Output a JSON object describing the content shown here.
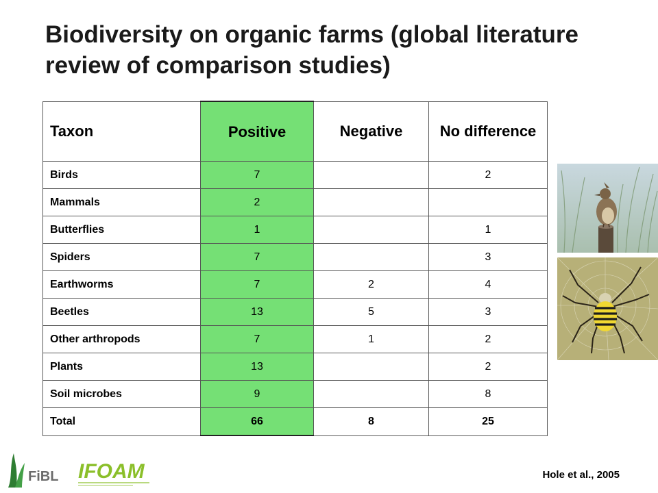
{
  "title": "Biodiversity on organic farms (global literature review of comparison studies)",
  "table": {
    "headers": [
      "Taxon",
      "Positive",
      "Negative",
      "No difference"
    ],
    "rows": [
      {
        "taxon": "Birds",
        "positive": "7",
        "negative": "",
        "no_difference": "2"
      },
      {
        "taxon": "Mammals",
        "positive": "2",
        "negative": "",
        "no_difference": ""
      },
      {
        "taxon": "Butterflies",
        "positive": "1",
        "negative": "",
        "no_difference": "1"
      },
      {
        "taxon": "Spiders",
        "positive": "7",
        "negative": "",
        "no_difference": "3"
      },
      {
        "taxon": "Earthworms",
        "positive": "7",
        "negative": "2",
        "no_difference": "4"
      },
      {
        "taxon": "Beetles",
        "positive": "13",
        "negative": "5",
        "no_difference": "3"
      },
      {
        "taxon": "Other arthropods",
        "positive": "7",
        "negative": "1",
        "no_difference": "2"
      },
      {
        "taxon": "Plants",
        "positive": "13",
        "negative": "",
        "no_difference": "2"
      },
      {
        "taxon": "Soil microbes",
        "positive": "9",
        "negative": "",
        "no_difference": "8"
      }
    ],
    "total": {
      "taxon": "Total",
      "positive": "66",
      "negative": "8",
      "no_difference": "25"
    }
  },
  "colors": {
    "positive_highlight": "#75e075"
  },
  "logos": {
    "fibl": "FiBL",
    "ifoam": "IFOAM"
  },
  "citation": "Hole et al., 2005"
}
